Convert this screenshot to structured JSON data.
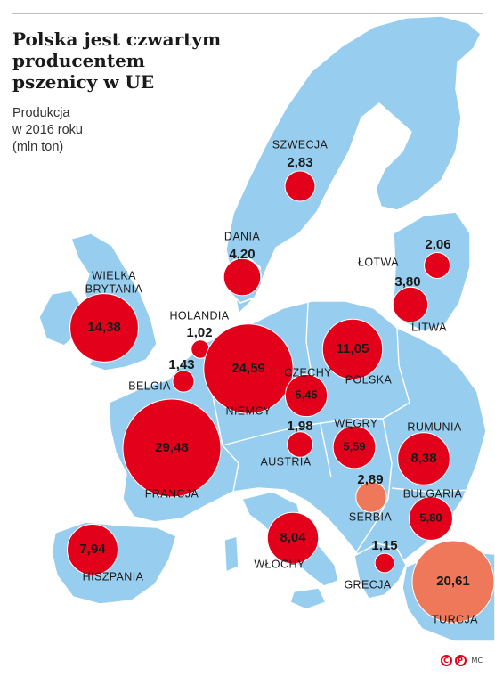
{
  "title_lines": [
    "Polska jest czwartym",
    "producentem",
    "pszenicy w UE"
  ],
  "subtitle_lines": [
    "Produkcja",
    "w 2016 roku",
    "(mln ton)"
  ],
  "colors": {
    "land": "#97ceef",
    "border": "#ffffff",
    "eu": "#e3001b",
    "non_eu": "#f0785a",
    "sea": "#ffffff",
    "text": "#1a1a1a"
  },
  "icons": [
    "copyright-c-icon",
    "copyright-p-icon"
  ],
  "credit": "MC",
  "countries": [
    {
      "name": "SZWECJA",
      "value": "2,83",
      "num": 2.83,
      "group": "eu"
    },
    {
      "name": "DANIA",
      "value": "4,20",
      "num": 4.2,
      "group": "eu"
    },
    {
      "name": "ŁOTWA",
      "value": "2,06",
      "num": 2.06,
      "group": "eu"
    },
    {
      "name": "LITWA",
      "value": "3,80",
      "num": 3.8,
      "group": "eu"
    },
    {
      "name_lines": [
        "WIELKA",
        "BRYTANIA"
      ],
      "value": "14,38",
      "num": 14.38,
      "group": "eu"
    },
    {
      "name": "HOLANDIA",
      "value": "1,02",
      "num": 1.02,
      "group": "eu"
    },
    {
      "name": "BELGIA",
      "value": "1,43",
      "num": 1.43,
      "group": "eu"
    },
    {
      "name": "NIEMCY",
      "value": "24,59",
      "num": 24.59,
      "group": "eu"
    },
    {
      "name": "POLSKA",
      "value": "11,05",
      "num": 11.05,
      "group": "eu"
    },
    {
      "name": "CZECHY",
      "value": "5,45",
      "num": 5.45,
      "group": "eu"
    },
    {
      "name": "FRANCJA",
      "value": "29,48",
      "num": 29.48,
      "group": "eu"
    },
    {
      "name": "AUSTRIA",
      "value": "1,98",
      "num": 1.98,
      "group": "eu"
    },
    {
      "name": "WĘGRY",
      "value": "5,59",
      "num": 5.59,
      "group": "eu"
    },
    {
      "name": "RUMUNIA",
      "value": "8,38",
      "num": 8.38,
      "group": "eu"
    },
    {
      "name": "SERBIA",
      "value": "2,89",
      "num": 2.89,
      "group": "non_eu"
    },
    {
      "name": "BUŁGARIA",
      "value": "5,80",
      "num": 5.8,
      "group": "eu"
    },
    {
      "name": "HISZPANIA",
      "value": "7,94",
      "num": 7.94,
      "group": "eu"
    },
    {
      "name": "WŁOCHY",
      "value": "8,04",
      "num": 8.04,
      "group": "eu"
    },
    {
      "name": "GRECJA",
      "value": "1,15",
      "num": 1.15,
      "group": "eu"
    },
    {
      "name": "TURCJA",
      "value": "20,61",
      "num": 20.61,
      "group": "non_eu"
    }
  ]
}
